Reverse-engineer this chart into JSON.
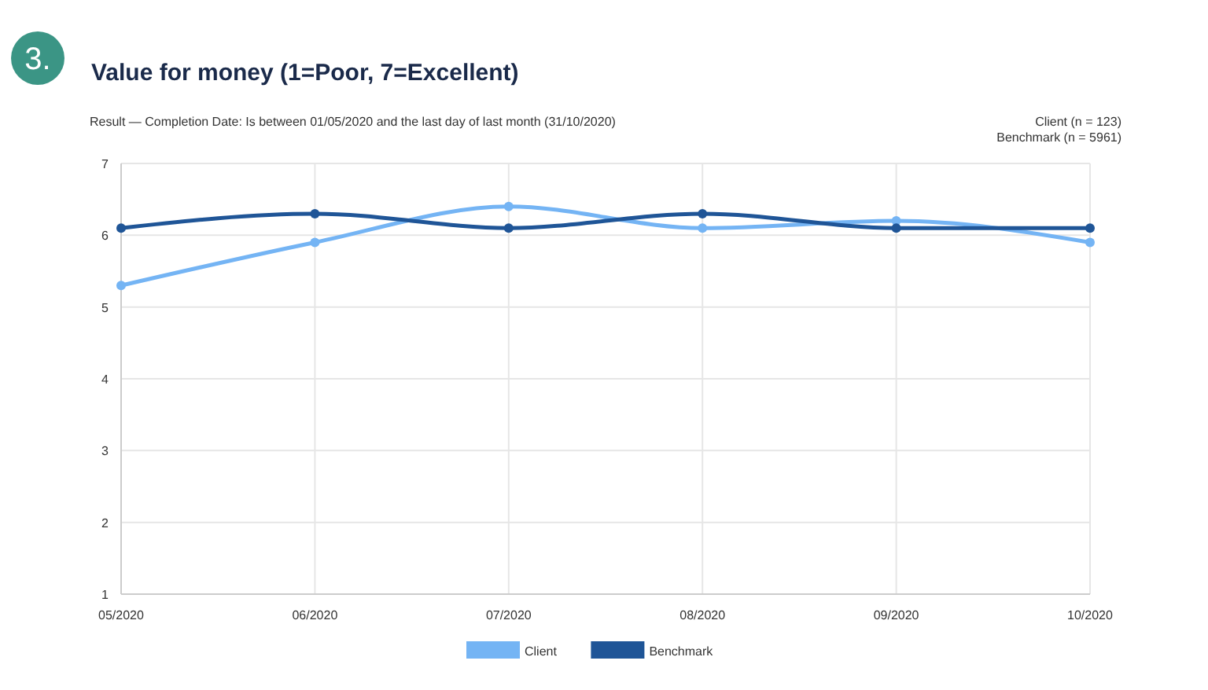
{
  "chart_data": {
    "type": "line",
    "title": "Value for money (1=Poor, 7=Excellent)",
    "subtitle": "Result — Completion Date: Is between 01/05/2020 and the last day of last month (31/10/2020)",
    "annotations": [
      "3.",
      "Client (n = 123)",
      "Benchmark (n = 5961)"
    ],
    "categories": [
      "05/2020",
      "06/2020",
      "07/2020",
      "08/2020",
      "09/2020",
      "10/2020"
    ],
    "series": [
      {
        "name": "Client",
        "color": "#74b4f4",
        "values": [
          5.3,
          5.9,
          6.4,
          6.1,
          6.2,
          5.9
        ]
      },
      {
        "name": "Benchmark",
        "color": "#1f5597",
        "values": [
          6.1,
          6.3,
          6.1,
          6.3,
          6.1,
          6.1
        ]
      }
    ],
    "ylim": [
      1,
      7
    ],
    "yticks": [
      1,
      2,
      3,
      4,
      5,
      6,
      7
    ],
    "grid": true,
    "legend": "bottom",
    "marker": "circle",
    "line_style": "solid"
  }
}
